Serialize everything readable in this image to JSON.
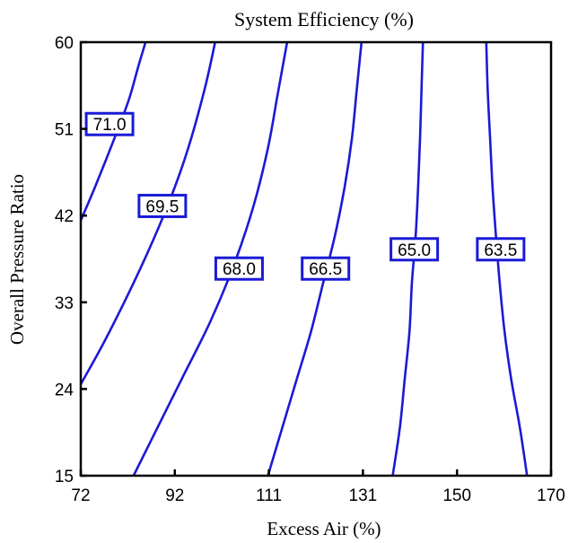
{
  "chart_data": {
    "type": "contour",
    "title": "System Efficiency (%)",
    "xlabel": "Excess Air (%)",
    "ylabel": "Overall Pressure Ratio",
    "xlim": [
      72,
      170
    ],
    "ylim": [
      15,
      60
    ],
    "x_ticks": [
      "72",
      "92",
      "111",
      "131",
      "150",
      "170"
    ],
    "y_ticks": [
      "15",
      "24",
      "33",
      "42",
      "51",
      "60"
    ],
    "grid": false,
    "line_color": "#1a1ad6",
    "series": [
      {
        "name": "71.0",
        "label": "71.0",
        "label_point": [
          78,
          51.5
        ],
        "points": [
          [
            72,
            41.5
          ],
          [
            75,
            45
          ],
          [
            79,
            50
          ],
          [
            82,
            54
          ],
          [
            84,
            57.5
          ],
          [
            85.5,
            60
          ]
        ]
      },
      {
        "name": "69.5",
        "label": "69.5",
        "label_point": [
          89,
          43
        ],
        "points": [
          [
            72,
            24.5
          ],
          [
            77,
            29
          ],
          [
            83,
            35
          ],
          [
            88,
            40.5
          ],
          [
            92,
            45.5
          ],
          [
            95,
            50
          ],
          [
            98,
            55.5
          ],
          [
            100,
            60
          ]
        ]
      },
      {
        "name": "68.0",
        "label": "68.0",
        "label_point": [
          105,
          36.5
        ],
        "points": [
          [
            83,
            15
          ],
          [
            88,
            20
          ],
          [
            93,
            25
          ],
          [
            99,
            31
          ],
          [
            104,
            37
          ],
          [
            108,
            43
          ],
          [
            111,
            49
          ],
          [
            113,
            54.5
          ],
          [
            115,
            60
          ]
        ]
      },
      {
        "name": "66.5",
        "label": "66.5",
        "label_point": [
          123,
          36.5
        ],
        "points": [
          [
            111,
            15
          ],
          [
            114,
            20
          ],
          [
            117,
            25
          ],
          [
            120,
            30
          ],
          [
            122.5,
            35
          ],
          [
            125,
            40
          ],
          [
            127,
            45
          ],
          [
            128.5,
            50
          ],
          [
            129.5,
            55
          ],
          [
            130.5,
            60
          ]
        ]
      },
      {
        "name": "65.0",
        "label": "65.0",
        "label_point": [
          141.5,
          38.5
        ],
        "points": [
          [
            137,
            15
          ],
          [
            138.5,
            20
          ],
          [
            139.5,
            25
          ],
          [
            140.5,
            30
          ],
          [
            141,
            35
          ],
          [
            141.8,
            40
          ],
          [
            142.3,
            45
          ],
          [
            142.7,
            50
          ],
          [
            143,
            55
          ],
          [
            143.3,
            60
          ]
        ]
      },
      {
        "name": "63.5",
        "label": "63.5",
        "label_point": [
          159.5,
          38.5
        ],
        "points": [
          [
            165,
            15
          ],
          [
            163.5,
            20
          ],
          [
            161.7,
            25
          ],
          [
            160.3,
            30
          ],
          [
            159.3,
            35
          ],
          [
            158.5,
            40
          ],
          [
            157.8,
            45
          ],
          [
            157.3,
            50
          ],
          [
            156.8,
            55
          ],
          [
            156.5,
            60
          ]
        ]
      }
    ]
  }
}
